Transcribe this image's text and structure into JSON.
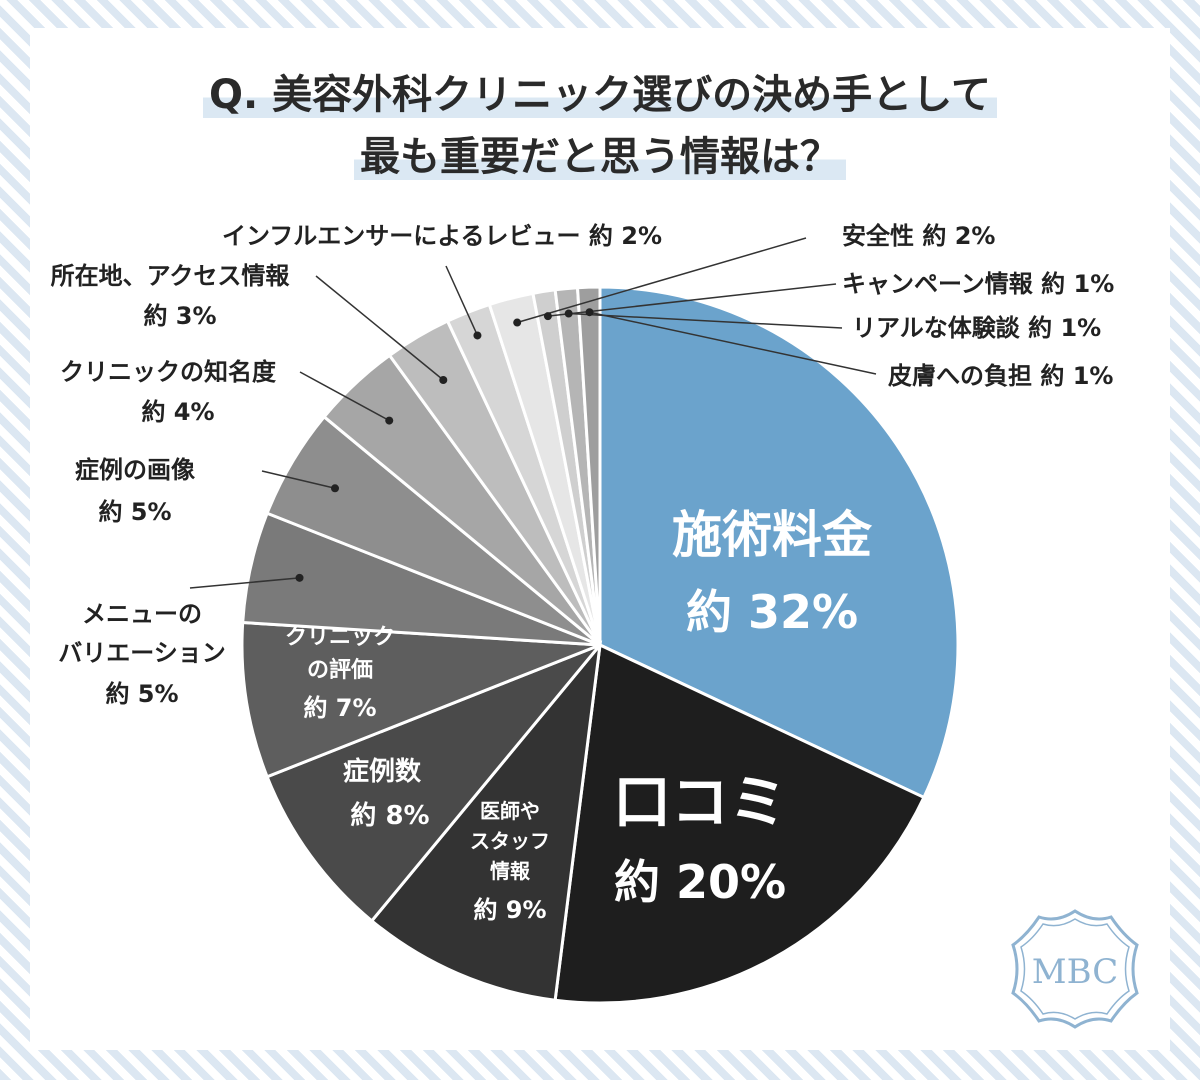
{
  "title": {
    "line1": "Q. 美容外科クリニック選びの決め手として",
    "line2": "最も重要だと思う情報は？"
  },
  "chart_data": {
    "type": "pie",
    "title": "Q. 美容外科クリニック選びの決め手として最も重要だと思う情報は？",
    "slices": [
      {
        "label": "施術料金",
        "value": 32,
        "display": "約 32%",
        "color": "#6ba3cc"
      },
      {
        "label": "口コミ",
        "value": 20,
        "display": "約 20%",
        "color": "#1e1e1e"
      },
      {
        "label": "医師やスタッフ情報",
        "value": 9,
        "display": "約 9%",
        "color": "#333333"
      },
      {
        "label": "症例数",
        "value": 8,
        "display": "約 8%",
        "color": "#4a4a4a"
      },
      {
        "label": "クリニックの評価",
        "value": 7,
        "display": "約 7%",
        "color": "#5e5e5e"
      },
      {
        "label": "メニューのバリエーション",
        "value": 5,
        "display": "約 5%",
        "color": "#7a7a7a"
      },
      {
        "label": "症例の画像",
        "value": 5,
        "display": "約 5%",
        "color": "#8e8e8e"
      },
      {
        "label": "クリニックの知名度",
        "value": 4,
        "display": "約 4%",
        "color": "#a6a6a6"
      },
      {
        "label": "所在地、アクセス情報",
        "value": 3,
        "display": "約 3%",
        "color": "#bdbdbd"
      },
      {
        "label": "インフルエンサーによるレビュー",
        "value": 2,
        "display": "約 2%",
        "color": "#d6d6d6"
      },
      {
        "label": "安全性",
        "value": 2,
        "display": "約 2%",
        "color": "#e6e6e6"
      },
      {
        "label": "キャンペーン情報",
        "value": 1,
        "display": "約 1%",
        "color": "#cfcfcf"
      },
      {
        "label": "リアルな体験談",
        "value": 1,
        "display": "約 1%",
        "color": "#b5b5b5"
      },
      {
        "label": "皮膚への負担",
        "value": 1,
        "display": "約 1%",
        "color": "#9e9e9e"
      }
    ],
    "labels": {
      "s0": {
        "l1": "施術料金",
        "l2": "約 32%"
      },
      "s1": {
        "l1": "口コミ",
        "l2": "約 20%"
      },
      "s2": {
        "l1": "医師や",
        "l2": "スタッフ",
        "l3": "情報",
        "l4": "約 9%"
      },
      "s3": {
        "l1": "症例数",
        "l2": "約 8%"
      },
      "s4": {
        "l1": "クリニック",
        "l2": "の評価",
        "l3": "約 7%"
      },
      "s5": {
        "l1": "メニューの",
        "l2": "バリエーション",
        "l3": "約 5%"
      },
      "s6": {
        "l1": "症例の画像",
        "l2": "約 5%"
      },
      "s7": {
        "l1": "クリニックの知名度",
        "l2": "約 4%"
      },
      "s8": {
        "l1": "所在地、アクセス情報",
        "l2": "約 3%"
      },
      "s9": {
        "l1": "インフルエンサーによるレビュー 約 2%"
      },
      "s10": {
        "l1": "安全性  約 2%"
      },
      "s11": {
        "l1": "キャンペーン情報 約 1%"
      },
      "s12": {
        "l1": "リアルな体験談 約 1%"
      },
      "s13": {
        "l1": "皮膚への負担 約 1%"
      }
    }
  },
  "logo": {
    "text": "MBC",
    "color": "#8fb3d1"
  }
}
